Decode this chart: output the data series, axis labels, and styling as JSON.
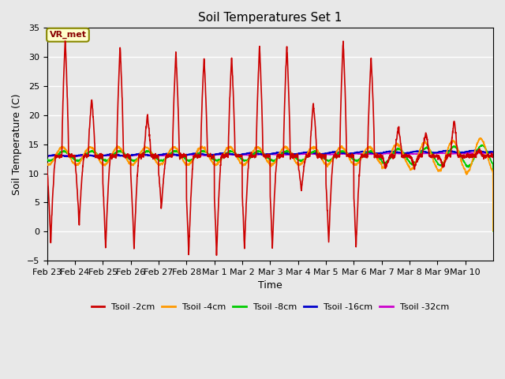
{
  "title": "Soil Temperatures Set 1",
  "xlabel": "Time",
  "ylabel": "Soil Temperature (C)",
  "ylim": [
    -5,
    35
  ],
  "fig_facecolor": "#e8e8e8",
  "ax_facecolor": "#e8e8e8",
  "annotation_text": "VR_met",
  "annotation_bg": "#ffffcc",
  "annotation_border": "#888800",
  "series": {
    "Tsoil -2cm": {
      "color": "#cc0000",
      "lw": 1.2
    },
    "Tsoil -4cm": {
      "color": "#ff9900",
      "lw": 1.2
    },
    "Tsoil -8cm": {
      "color": "#00cc00",
      "lw": 1.2
    },
    "Tsoil -16cm": {
      "color": "#0000cc",
      "lw": 1.2
    },
    "Tsoil -32cm": {
      "color": "#cc00cc",
      "lw": 1.2
    }
  },
  "tick_labels": [
    "Feb 23",
    "Feb 24",
    "Feb 25",
    "Feb 26",
    "Feb 27",
    "Feb 28",
    "Mar 1",
    "Mar 2",
    "Mar 3",
    "Mar 4",
    "Mar 5",
    "Mar 6",
    "Mar 7",
    "Mar 8",
    "Mar 9",
    "Mar 10"
  ],
  "yticks": [
    -5,
    0,
    5,
    10,
    15,
    20,
    25,
    30,
    35
  ],
  "n_days": 16,
  "pts_per_day": 144
}
